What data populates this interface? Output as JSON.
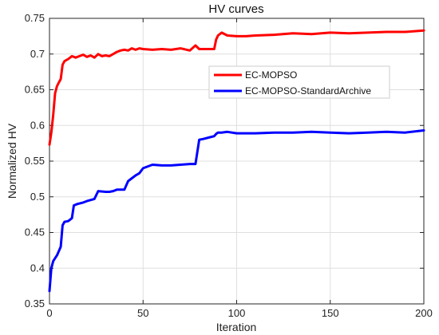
{
  "chart_data": {
    "type": "line",
    "title": "HV curves",
    "xlabel": "Iteration",
    "ylabel": "Normalized HV",
    "xlim": [
      0,
      200
    ],
    "ylim": [
      0.35,
      0.75
    ],
    "xticks": [
      0,
      50,
      100,
      150,
      200
    ],
    "yticks": [
      0.35,
      0.4,
      0.45,
      0.5,
      0.55,
      0.6,
      0.65,
      0.7,
      0.75
    ],
    "grid": true,
    "legend_position": "upper-right-inside",
    "series": [
      {
        "name": "EC-MOPSO",
        "color": "#ff0000",
        "x": [
          0,
          1,
          2,
          3,
          4,
          5,
          6,
          7,
          8,
          10,
          12,
          14,
          16,
          18,
          20,
          22,
          24,
          26,
          28,
          30,
          32,
          34,
          36,
          38,
          40,
          42,
          44,
          46,
          48,
          50,
          55,
          60,
          65,
          70,
          75,
          78,
          80,
          85,
          88,
          89,
          90,
          92,
          95,
          100,
          105,
          110,
          120,
          130,
          140,
          150,
          160,
          170,
          180,
          190,
          200
        ],
        "values": [
          0.573,
          0.59,
          0.615,
          0.645,
          0.655,
          0.66,
          0.665,
          0.685,
          0.69,
          0.693,
          0.697,
          0.695,
          0.697,
          0.699,
          0.696,
          0.698,
          0.695,
          0.7,
          0.697,
          0.698,
          0.697,
          0.7,
          0.703,
          0.705,
          0.706,
          0.705,
          0.708,
          0.706,
          0.708,
          0.707,
          0.706,
          0.707,
          0.706,
          0.708,
          0.705,
          0.712,
          0.707,
          0.707,
          0.707,
          0.72,
          0.726,
          0.73,
          0.726,
          0.725,
          0.725,
          0.726,
          0.727,
          0.729,
          0.728,
          0.73,
          0.729,
          0.73,
          0.731,
          0.731,
          0.733
        ]
      },
      {
        "name": "EC-MOPSO-StandardArchive",
        "color": "#0000ff",
        "x": [
          0,
          1,
          2,
          4,
          6,
          7,
          8,
          10,
          12,
          13,
          15,
          18,
          20,
          24,
          26,
          30,
          32,
          34,
          36,
          38,
          40,
          42,
          44,
          46,
          48,
          50,
          55,
          60,
          65,
          70,
          75,
          78,
          80,
          82,
          85,
          88,
          89,
          90,
          92,
          95,
          100,
          110,
          120,
          130,
          140,
          150,
          160,
          170,
          180,
          190,
          200
        ],
        "values": [
          0.368,
          0.4,
          0.41,
          0.418,
          0.43,
          0.46,
          0.465,
          0.466,
          0.47,
          0.488,
          0.49,
          0.492,
          0.494,
          0.497,
          0.508,
          0.507,
          0.507,
          0.508,
          0.51,
          0.51,
          0.51,
          0.522,
          0.526,
          0.53,
          0.533,
          0.54,
          0.545,
          0.544,
          0.544,
          0.545,
          0.546,
          0.546,
          0.58,
          0.581,
          0.583,
          0.585,
          0.588,
          0.59,
          0.59,
          0.591,
          0.589,
          0.589,
          0.59,
          0.59,
          0.591,
          0.59,
          0.589,
          0.59,
          0.591,
          0.59,
          0.593
        ]
      }
    ]
  }
}
